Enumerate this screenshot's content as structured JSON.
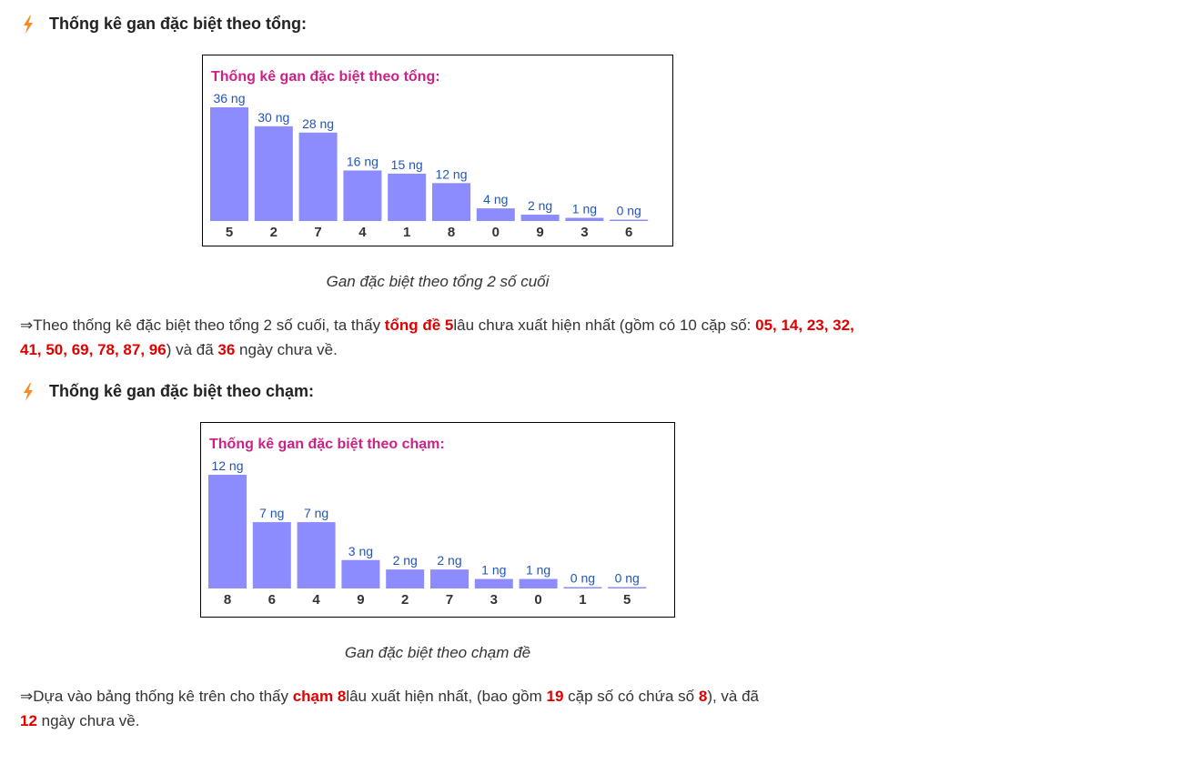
{
  "section1": {
    "heading": "Thống kê gan đặc biệt theo tổng:",
    "caption": "Gan đặc biệt theo tổng 2 số cuối",
    "para": {
      "arrow": "⇒",
      "t1": "Theo thống kê đặc biệt theo tổng 2 số cuối, ta thấy ",
      "h1": "tổng đề 5",
      "t2": "lâu chưa xuất hiện nhất (gồm có 10 cặp số: ",
      "h2": "05, 14, 23, 32, 41, 50, 69, 78, 87, 96",
      "t3": ") và đã ",
      "h3": "36",
      "t4": " ngày chưa về."
    }
  },
  "section2": {
    "heading": "Thống kê gan đặc biệt theo chạm:",
    "caption": "Gan đặc biệt theo chạm đề",
    "para": {
      "arrow": "⇒",
      "t1": "Dựa vào bảng thống kê trên cho thấy ",
      "h1": "chạm 8",
      "t2": "lâu xuất hiện nhất, (bao gồm ",
      "h2": "19",
      "t3": " cặp số có chứa số ",
      "h3": "8",
      "t4": "), và đã",
      "h4": "12",
      "t5": " ngày chưa về."
    }
  },
  "colors": {
    "bar": "#8c8cff",
    "value_label": "#2255bb",
    "chart_title": "#cc2288",
    "highlight": "#e00000",
    "bolt": "#f28c28"
  },
  "chart_data": [
    {
      "type": "bar",
      "title": "Thống kê gan đặc biệt theo tổng:",
      "categories": [
        "5",
        "2",
        "7",
        "4",
        "1",
        "8",
        "0",
        "9",
        "3",
        "6"
      ],
      "values": [
        36,
        30,
        28,
        16,
        15,
        12,
        4,
        2,
        1,
        0
      ],
      "labels": [
        "36 ng",
        "30 ng",
        "28 ng",
        "16 ng",
        "15 ng",
        "12 ng",
        "4 ng",
        "2 ng",
        "1 ng",
        "0 ng"
      ],
      "ylim": [
        0,
        36
      ]
    },
    {
      "type": "bar",
      "title": "Thống kê gan đặc biệt theo chạm:",
      "categories": [
        "8",
        "6",
        "4",
        "9",
        "2",
        "7",
        "3",
        "0",
        "1",
        "5"
      ],
      "values": [
        12,
        7,
        7,
        3,
        2,
        2,
        1,
        1,
        0,
        0
      ],
      "labels": [
        "12 ng",
        "7 ng",
        "7 ng",
        "3 ng",
        "2 ng",
        "2 ng",
        "1 ng",
        "1 ng",
        "0 ng",
        "0 ng"
      ],
      "ylim": [
        0,
        12
      ]
    }
  ]
}
